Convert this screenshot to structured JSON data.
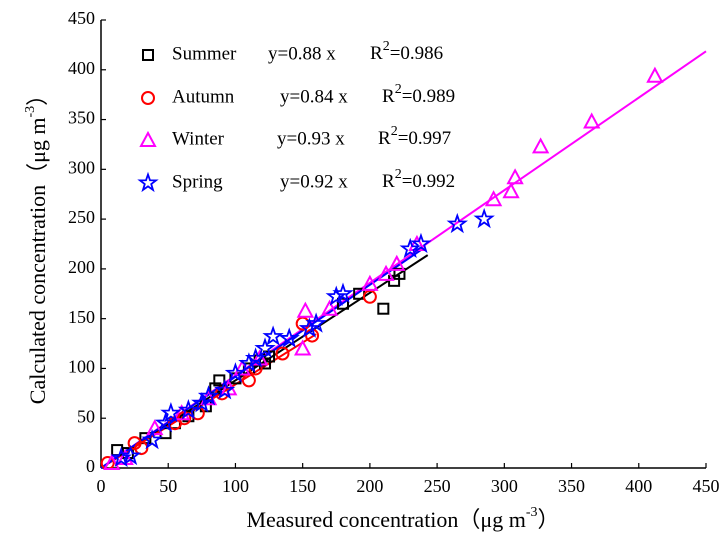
{
  "chart_data": {
    "type": "scatter",
    "x_label": [
      "Measured concentration（",
      "μg m",
      "-3",
      "）"
    ],
    "y_label": [
      "Calculated concentration（",
      "μg m",
      "-3",
      "）"
    ],
    "xlim": [
      0,
      450
    ],
    "xticks": [
      0,
      50,
      100,
      150,
      200,
      250,
      300,
      350,
      400,
      450
    ],
    "ylim": [
      0,
      450
    ],
    "yticks": [
      0,
      50,
      100,
      150,
      200,
      250,
      300,
      350,
      400,
      450
    ],
    "series": [
      {
        "name": "Summer",
        "color": "#000000",
        "marker": "square",
        "equation": "y=0.88 x",
        "r2_label": [
          "R",
          "2",
          "=0.986"
        ],
        "fit_slope": 0.88,
        "fit_xrange": [
          5,
          243
        ],
        "x": [
          12,
          20,
          33,
          48,
          55,
          65,
          78,
          85,
          88,
          100,
          110,
          118,
          122,
          125,
          180,
          192,
          210,
          218,
          222
        ],
        "values": [
          18,
          15,
          30,
          35,
          45,
          52,
          62,
          80,
          88,
          90,
          100,
          108,
          105,
          112,
          165,
          175,
          160,
          188,
          195
        ]
      },
      {
        "name": "Autumn",
        "color": "#ff0000",
        "marker": "circle",
        "equation": "y=0.84 x",
        "r2_label": [
          "R",
          "2",
          "=0.989"
        ],
        "fit_slope": 0.84,
        "fit_xrange": [
          5,
          160
        ],
        "x": [
          5,
          25,
          30,
          55,
          62,
          72,
          90,
          110,
          115,
          135,
          150,
          157,
          200
        ],
        "values": [
          5,
          25,
          20,
          45,
          50,
          55,
          75,
          88,
          100,
          115,
          145,
          133,
          172
        ]
      },
      {
        "name": "Winter",
        "color": "#ff00ff",
        "marker": "triangle",
        "equation": "y=0.93 x",
        "r2_label": [
          "R",
          "2",
          "=0.997"
        ],
        "fit_slope": 0.93,
        "fit_xrange": [
          0,
          450
        ],
        "x": [
          8,
          18,
          40,
          60,
          80,
          95,
          105,
          118,
          150,
          152,
          170,
          200,
          212,
          220,
          235,
          292,
          305,
          308,
          327,
          365,
          412
        ],
        "values": [
          5,
          10,
          40,
          55,
          70,
          80,
          100,
          110,
          120,
          158,
          160,
          185,
          195,
          205,
          225,
          270,
          278,
          292,
          323,
          348,
          394
        ]
      },
      {
        "name": "Spring",
        "color": "#0000ff",
        "marker": "star",
        "equation": "y=0.92 x",
        "r2_label": [
          "R",
          "2",
          "=0.992"
        ],
        "fit_slope": 0.92,
        "fit_xrange": [
          0,
          240
        ],
        "x": [
          15,
          22,
          38,
          48,
          52,
          65,
          75,
          80,
          92,
          100,
          110,
          115,
          122,
          128,
          140,
          155,
          160,
          175,
          180,
          230,
          238,
          265,
          285
        ],
        "values": [
          10,
          12,
          28,
          45,
          55,
          58,
          65,
          72,
          78,
          95,
          105,
          110,
          120,
          132,
          130,
          140,
          145,
          172,
          175,
          220,
          225,
          245,
          250
        ]
      }
    ]
  }
}
